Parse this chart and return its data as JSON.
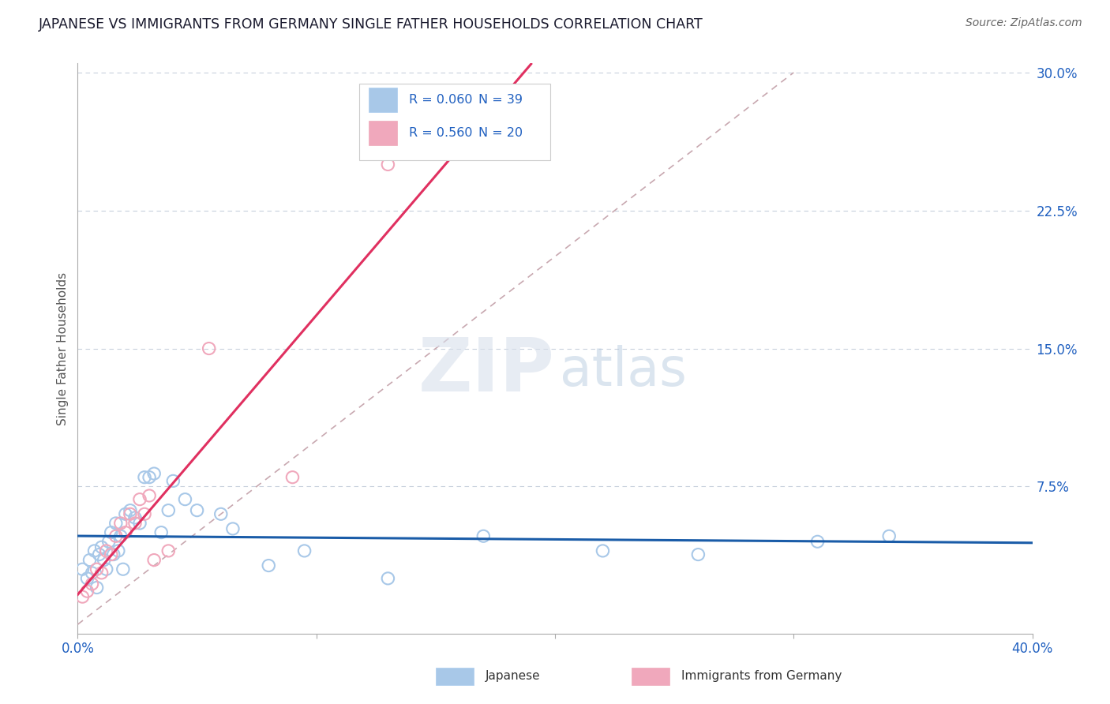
{
  "title": "JAPANESE VS IMMIGRANTS FROM GERMANY SINGLE FATHER HOUSEHOLDS CORRELATION CHART",
  "source": "Source: ZipAtlas.com",
  "ylabel": "Single Father Households",
  "xlim": [
    0.0,
    0.4
  ],
  "ylim": [
    -0.005,
    0.305
  ],
  "yticks": [
    0.0,
    0.075,
    0.15,
    0.225,
    0.3
  ],
  "ytick_labels": [
    "",
    "7.5%",
    "15.0%",
    "22.5%",
    "30.0%"
  ],
  "xticks": [
    0.0,
    0.1,
    0.2,
    0.3,
    0.4
  ],
  "xtick_labels": [
    "0.0%",
    "",
    "",
    "",
    "40.0%"
  ],
  "legend_r1": "R = 0.060",
  "legend_n1": "N = 39",
  "legend_r2": "R = 0.560",
  "legend_n2": "N = 20",
  "legend_label1": "Japanese",
  "legend_label2": "Immigrants from Germany",
  "color_japanese": "#a8c8e8",
  "color_germany": "#f0a8bc",
  "color_trend_japanese": "#1a5ca8",
  "color_trend_germany": "#e03060",
  "color_diagonal": "#c8a8b0",
  "color_axis_labels": "#2060c0",
  "color_title": "#1a1a2e",
  "japanese_x": [
    0.002,
    0.004,
    0.005,
    0.006,
    0.007,
    0.008,
    0.009,
    0.01,
    0.011,
    0.012,
    0.013,
    0.014,
    0.015,
    0.016,
    0.017,
    0.018,
    0.019,
    0.02,
    0.022,
    0.024,
    0.026,
    0.028,
    0.03,
    0.032,
    0.035,
    0.038,
    0.04,
    0.045,
    0.05,
    0.06,
    0.065,
    0.08,
    0.095,
    0.13,
    0.17,
    0.22,
    0.26,
    0.31,
    0.34
  ],
  "japanese_y": [
    0.03,
    0.025,
    0.035,
    0.028,
    0.04,
    0.02,
    0.038,
    0.042,
    0.035,
    0.03,
    0.045,
    0.05,
    0.038,
    0.055,
    0.04,
    0.048,
    0.03,
    0.06,
    0.062,
    0.058,
    0.055,
    0.08,
    0.08,
    0.082,
    0.05,
    0.062,
    0.078,
    0.068,
    0.062,
    0.06,
    0.052,
    0.032,
    0.04,
    0.025,
    0.048,
    0.04,
    0.038,
    0.045,
    0.048
  ],
  "germany_x": [
    0.002,
    0.004,
    0.006,
    0.008,
    0.01,
    0.012,
    0.014,
    0.016,
    0.018,
    0.02,
    0.022,
    0.024,
    0.026,
    0.028,
    0.03,
    0.032,
    0.038,
    0.055,
    0.09,
    0.13
  ],
  "germany_y": [
    0.015,
    0.018,
    0.022,
    0.03,
    0.028,
    0.04,
    0.038,
    0.048,
    0.055,
    0.05,
    0.06,
    0.055,
    0.068,
    0.06,
    0.07,
    0.035,
    0.04,
    0.15,
    0.08,
    0.25
  ],
  "watermark_zip": "ZIP",
  "watermark_atlas": "atlas",
  "background_color": "#ffffff",
  "grid_color": "#c8d0dc",
  "title_fontsize": 12.5,
  "axis_label_fontsize": 11
}
